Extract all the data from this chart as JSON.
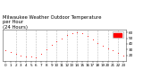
{
  "title": "Milwaukee Weather Outdoor Temperature\nper Hour\n(24 Hours)",
  "title_fontsize": 3.8,
  "background_color": "#ffffff",
  "plot_bg_color": "#ffffff",
  "line_color": "#ff0000",
  "marker_color": "#ff0000",
  "hours": [
    0,
    1,
    2,
    3,
    4,
    5,
    6,
    7,
    8,
    9,
    10,
    11,
    12,
    13,
    14,
    15,
    16,
    17,
    18,
    19,
    20,
    21,
    22,
    23
  ],
  "temps": [
    28,
    25,
    22,
    20,
    18,
    17,
    16,
    22,
    30,
    38,
    45,
    50,
    55,
    58,
    60,
    58,
    54,
    48,
    42,
    36,
    32,
    28,
    24,
    20
  ],
  "ylim": [
    10,
    65
  ],
  "yticks": [
    20,
    30,
    40,
    50,
    60
  ],
  "ytick_labels": [
    "20",
    "30",
    "40",
    "50",
    "60"
  ],
  "legend_color": "#ff0000",
  "grid_color": "#aaaaaa",
  "grid_positions": [
    2,
    4,
    6,
    8,
    10,
    12,
    14,
    16,
    18,
    20,
    22
  ],
  "tick_fontsize": 3.0,
  "legend_fontsize": 3.5,
  "figsize": [
    1.6,
    0.87
  ],
  "dpi": 100
}
